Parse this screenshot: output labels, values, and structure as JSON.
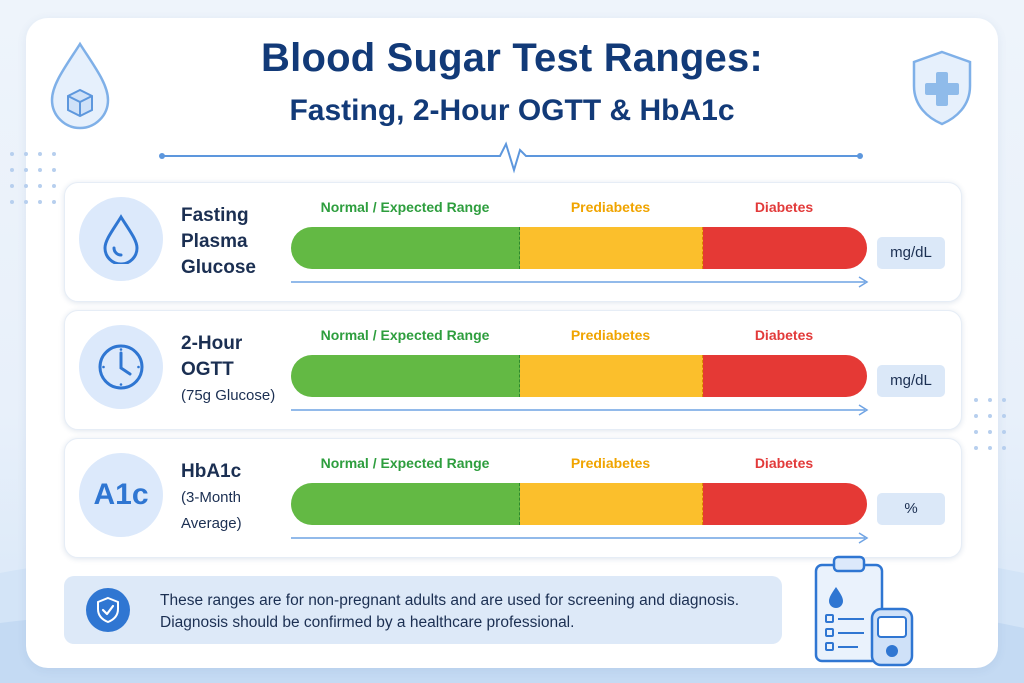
{
  "header": {
    "title": "Blood Sugar Test Ranges:",
    "subtitle": "Fasting, 2-Hour OGTT & HbA1c"
  },
  "categories": {
    "normal": "Normal / Expected Range",
    "prediabetes": "Prediabetes",
    "diabetes": "Diabetes"
  },
  "rows": [
    {
      "label": "Fasting Plasma Glucose",
      "line1": "Fasting",
      "line2": "Plasma",
      "line3": "Glucose",
      "unit": "mg/dL",
      "icon": "drop-icon"
    },
    {
      "label": "2-Hour OGTT",
      "line1": "2-Hour",
      "line2": "OGTT",
      "sub": "(75g Glucose)",
      "unit": "mg/dL",
      "icon": "clock-icon"
    },
    {
      "label": "HbA1c",
      "line1": "HbA1c",
      "sub1": "(3-Month",
      "sub2": "Average)",
      "unit": "%",
      "icon_text": "A1c"
    }
  ],
  "note": {
    "line1": "These ranges are for non-pregnant adults and are used for screening and diagnosis.",
    "line2": "Diagnosis should be confirmed by a healthcare professional.",
    "icon": "shield-check-icon"
  },
  "colors": {
    "title": "#123a78",
    "normal": "#63b944",
    "prediabetes": "#fbbf2c",
    "diabetes": "#e53935",
    "accent": "#2f76d2"
  }
}
